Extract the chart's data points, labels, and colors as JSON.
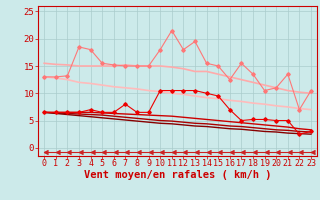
{
  "x": [
    0,
    1,
    2,
    3,
    4,
    5,
    6,
    7,
    8,
    9,
    10,
    11,
    12,
    13,
    14,
    15,
    16,
    17,
    18,
    19,
    20,
    21,
    22,
    23
  ],
  "bg_color": "#cceaea",
  "grid_color": "#aacccc",
  "xlabel": "Vent moyen/en rafales ( km/h )",
  "xlabel_color": "#cc0000",
  "xlabel_fontsize": 7.5,
  "tick_color": "#cc0000",
  "tick_fontsize": 6,
  "ylim": [
    -1.5,
    26
  ],
  "yticks": [
    0,
    5,
    10,
    15,
    20,
    25
  ],
  "ytick_labels": [
    "0",
    "5",
    "10",
    "15",
    "20",
    "25"
  ],
  "series": [
    {
      "label": "line1_pink_marker",
      "y": [
        13.0,
        13.0,
        13.2,
        18.5,
        18.0,
        15.5,
        15.2,
        15.0,
        15.0,
        15.0,
        18.0,
        21.5,
        18.0,
        19.5,
        15.5,
        15.0,
        12.5,
        15.5,
        13.5,
        10.5,
        11.0,
        13.5,
        7.0,
        10.5
      ],
      "color": "#ff7777",
      "lw": 0.8,
      "marker": "D",
      "ms": 1.8,
      "zorder": 4
    },
    {
      "label": "line2_pink_smooth_upper",
      "y": [
        15.5,
        15.3,
        15.2,
        15.0,
        15.0,
        15.0,
        15.0,
        15.2,
        15.0,
        15.0,
        15.0,
        14.8,
        14.5,
        14.0,
        14.0,
        13.5,
        13.0,
        12.5,
        12.0,
        11.5,
        11.0,
        10.5,
        10.2,
        10.0
      ],
      "color": "#ffaaaa",
      "lw": 1.2,
      "marker": null,
      "ms": 0,
      "zorder": 2
    },
    {
      "label": "line3_pink_smooth_lower",
      "y": [
        13.0,
        12.8,
        12.5,
        12.0,
        11.8,
        11.5,
        11.2,
        11.0,
        10.8,
        10.5,
        10.3,
        10.0,
        9.8,
        9.5,
        9.2,
        9.0,
        8.7,
        8.5,
        8.2,
        8.0,
        7.7,
        7.5,
        7.2,
        7.0
      ],
      "color": "#ffbbbb",
      "lw": 1.2,
      "marker": null,
      "ms": 0,
      "zorder": 2
    },
    {
      "label": "line4_red_marker",
      "y": [
        6.5,
        6.5,
        6.5,
        6.5,
        7.0,
        6.5,
        6.5,
        8.0,
        6.5,
        6.5,
        10.5,
        10.5,
        10.5,
        10.5,
        10.0,
        9.5,
        7.0,
        5.0,
        5.2,
        5.2,
        5.0,
        5.0,
        2.5,
        3.0
      ],
      "color": "#ee0000",
      "lw": 0.8,
      "marker": "D",
      "ms": 1.8,
      "zorder": 5
    },
    {
      "label": "line5_red_smooth1",
      "y": [
        6.5,
        6.5,
        6.5,
        6.5,
        6.5,
        6.4,
        6.3,
        6.2,
        6.1,
        6.0,
        5.9,
        5.8,
        5.6,
        5.4,
        5.2,
        5.0,
        4.8,
        4.6,
        4.4,
        4.2,
        4.0,
        3.8,
        3.5,
        3.3
      ],
      "color": "#cc0000",
      "lw": 1.0,
      "marker": null,
      "ms": 0,
      "zorder": 3
    },
    {
      "label": "line6_red_smooth2",
      "y": [
        6.5,
        6.4,
        6.3,
        6.2,
        6.1,
        6.0,
        5.8,
        5.6,
        5.4,
        5.2,
        5.0,
        4.9,
        4.7,
        4.5,
        4.4,
        4.2,
        4.0,
        3.9,
        3.7,
        3.5,
        3.3,
        3.2,
        3.0,
        2.9
      ],
      "color": "#aa0000",
      "lw": 1.0,
      "marker": null,
      "ms": 0,
      "zorder": 3
    },
    {
      "label": "line7_dark_smooth3",
      "y": [
        6.5,
        6.3,
        6.1,
        5.9,
        5.7,
        5.5,
        5.3,
        5.1,
        4.9,
        4.7,
        4.5,
        4.4,
        4.2,
        4.0,
        3.9,
        3.7,
        3.5,
        3.4,
        3.2,
        3.0,
        2.9,
        2.7,
        2.6,
        2.5
      ],
      "color": "#880000",
      "lw": 1.0,
      "marker": null,
      "ms": 0,
      "zorder": 3
    },
    {
      "label": "line8_bottom_arrows",
      "y": [
        -0.8,
        -0.8,
        -0.8,
        -0.8,
        -0.8,
        -0.8,
        -0.8,
        -0.8,
        -0.8,
        -0.8,
        -0.8,
        -0.8,
        -0.8,
        -0.8,
        -0.8,
        -0.8,
        -0.8,
        -0.8,
        -0.8,
        -0.8,
        -0.8,
        -0.8,
        -0.8,
        -0.8
      ],
      "color": "#cc2222",
      "lw": 0.8,
      "marker": 4,
      "ms": 3.5,
      "zorder": 4
    }
  ]
}
